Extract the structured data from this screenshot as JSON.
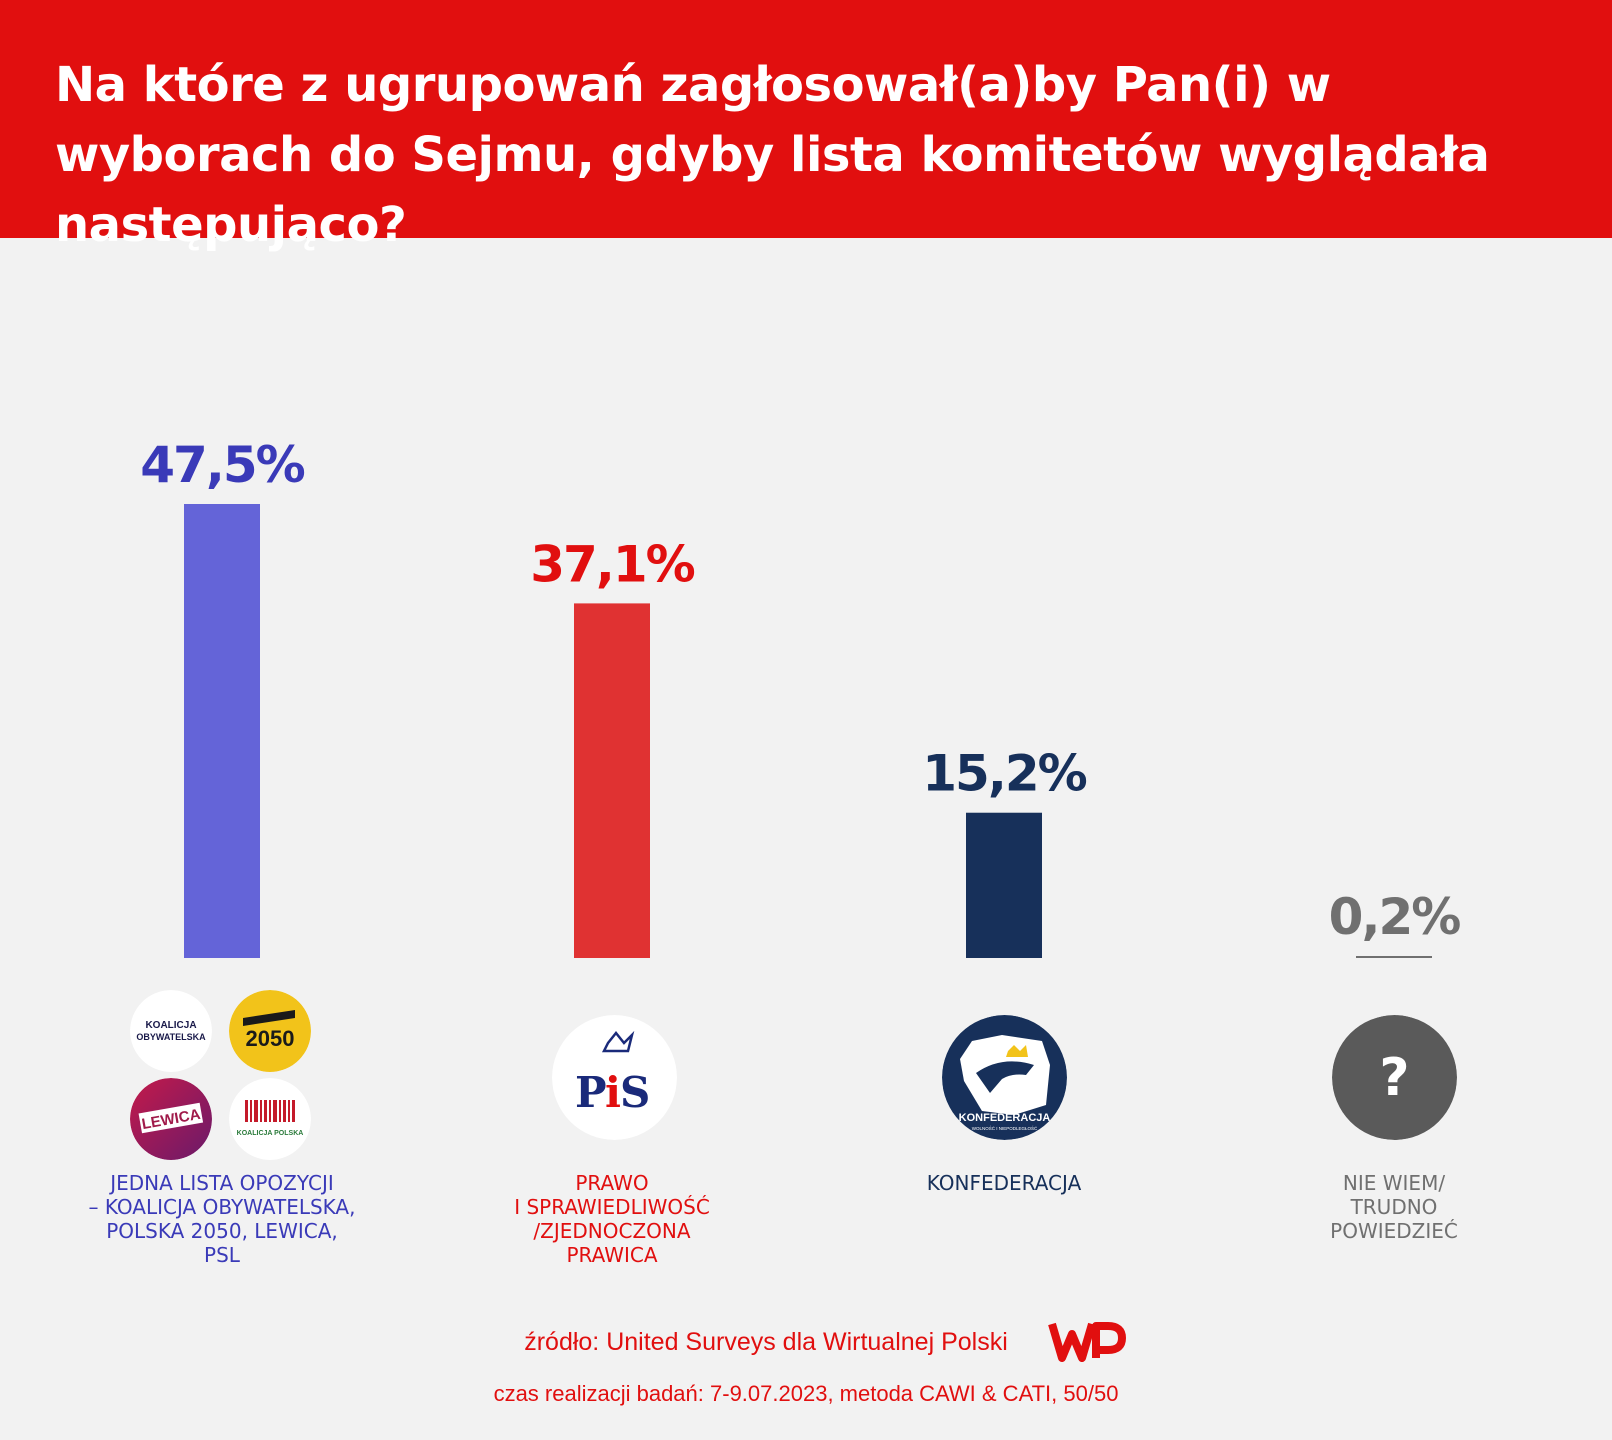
{
  "header": {
    "title": "Na które z ugrupowań zagłosował(a)by Pan(i) w wyborach do Sejmu, gdyby lista komitetów wyglądała następująco?"
  },
  "colors": {
    "header_bg": "#e10f0f",
    "background": "#f2f2f2",
    "opposition": "#6464d8",
    "pis": "#e03232",
    "konfederacja": "#17305a",
    "undecided": "#707070"
  },
  "chart_data": {
    "type": "bar",
    "title": "Na które z ugrupowań zagłosował(a)by Pan(i) w wyborach do Sejmu, gdyby lista komitetów wyglądała następująco?",
    "categories": [
      "JEDNA LISTA OPOZYCJI – KOALICJA OBYWATELSKA, POLSKA 2050, LEWICA, PSL",
      "PRAWO I SPRAWIEDLIWOŚĆ /ZJEDNOCZONA PRAWICA",
      "KONFEDERACJA",
      "NIE WIEM/ TRUDNO POWIEDZIEĆ"
    ],
    "category_lines": [
      [
        "JEDNA LISTA OPOZYCJI",
        "– KOALICJA OBYWATELSKA,",
        "POLSKA 2050, LEWICA,",
        "PSL"
      ],
      [
        "PRAWO",
        "I SPRAWIEDLIWOŚĆ",
        "/ZJEDNOCZONA",
        "PRAWICA"
      ],
      [
        "KONFEDERACJA"
      ],
      [
        "NIE WIEM/",
        "TRUDNO",
        "POWIEDZIEĆ"
      ]
    ],
    "values": [
      47.5,
      37.1,
      15.2,
      0.2
    ],
    "value_labels": [
      "47,5%",
      "37,1%",
      "15,2%",
      "0,2%"
    ],
    "bar_colors": [
      "#6464d8",
      "#e03232",
      "#17305a",
      "#707070"
    ],
    "label_colors": [
      "#3a3ab8",
      "#e10f0f",
      "#17305a",
      "#707070"
    ],
    "xlabel": "",
    "ylabel": "",
    "ylim": [
      0,
      47.5
    ],
    "grid": false,
    "legend": "none"
  },
  "logos": {
    "ko_line1": "KOALICJA",
    "ko_line2": "OBYWATELSKA",
    "polska2050": "2050",
    "lewica": "LEWICA",
    "kp": "KOALICJA POLSKA",
    "pis_p": "P",
    "pis_i": "i",
    "pis_s": "S",
    "konf_main": "KONFEDERACJA",
    "konf_sub": "WOLNOŚĆ I NIEPODLEGŁOŚĆ",
    "question": "?"
  },
  "footer": {
    "source": "źródło: United Surveys dla Wirtualnej Polski",
    "method": "czas realizacji badań: 7-9.07.2023, metoda CAWI & CATI, 50/50"
  }
}
